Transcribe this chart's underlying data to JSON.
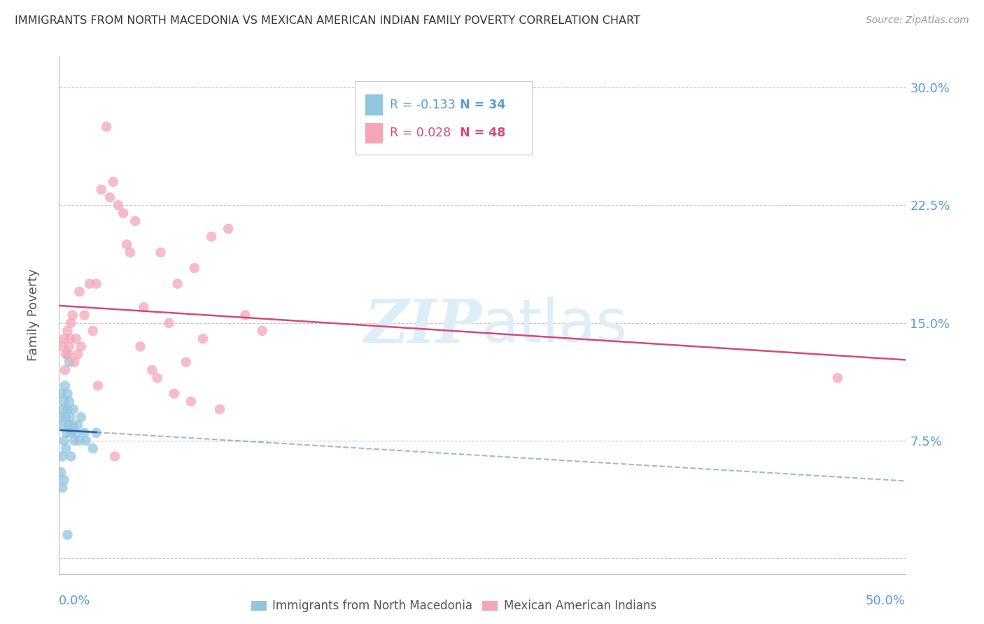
{
  "title": "IMMIGRANTS FROM NORTH MACEDONIA VS MEXICAN AMERICAN INDIAN FAMILY POVERTY CORRELATION CHART",
  "source": "Source: ZipAtlas.com",
  "ylabel": "Family Poverty",
  "ytick_values": [
    0.0,
    7.5,
    15.0,
    22.5,
    30.0
  ],
  "xlim": [
    0.0,
    50.0
  ],
  "ylim": [
    -1.0,
    32.0
  ],
  "ymin_display": 0.0,
  "ymax_display": 30.0,
  "color_blue": "#92c5de",
  "color_pink": "#f4a6b8",
  "color_blue_line": "#2166ac",
  "color_pink_line": "#d6497a",
  "color_blue_label": "#5b9bd5",
  "watermark_color": "#ddeef8",
  "background": "#ffffff",
  "grid_color": "#c8c8c8",
  "blue_scatter_x": [
    0.1,
    0.15,
    0.2,
    0.2,
    0.25,
    0.3,
    0.3,
    0.35,
    0.4,
    0.4,
    0.45,
    0.5,
    0.5,
    0.55,
    0.6,
    0.6,
    0.65,
    0.7,
    0.7,
    0.8,
    0.85,
    0.9,
    1.0,
    1.1,
    1.2,
    1.3,
    1.5,
    1.6,
    2.0,
    2.2,
    0.1,
    0.2,
    0.3,
    0.5
  ],
  "blue_scatter_y": [
    9.0,
    10.5,
    8.5,
    6.5,
    9.5,
    10.0,
    7.5,
    11.0,
    9.0,
    7.0,
    8.0,
    10.5,
    9.5,
    8.5,
    10.0,
    12.5,
    9.0,
    8.0,
    6.5,
    8.5,
    9.5,
    7.5,
    8.0,
    8.5,
    7.5,
    9.0,
    8.0,
    7.5,
    7.0,
    8.0,
    5.5,
    4.5,
    5.0,
    1.5
  ],
  "pink_scatter_x": [
    0.2,
    0.3,
    0.4,
    0.5,
    0.6,
    0.7,
    0.8,
    0.9,
    1.0,
    1.1,
    1.2,
    1.5,
    1.8,
    2.0,
    2.2,
    2.5,
    2.8,
    3.0,
    3.2,
    3.5,
    3.8,
    4.0,
    4.2,
    4.5,
    5.0,
    5.5,
    6.0,
    6.5,
    7.0,
    7.5,
    8.0,
    8.5,
    9.0,
    10.0,
    11.0,
    12.0,
    0.35,
    0.55,
    0.65,
    1.3,
    2.3,
    3.3,
    4.8,
    5.8,
    6.8,
    7.8,
    9.5,
    46.0
  ],
  "pink_scatter_y": [
    13.5,
    14.0,
    13.0,
    14.5,
    13.5,
    15.0,
    15.5,
    12.5,
    14.0,
    13.0,
    17.0,
    15.5,
    17.5,
    14.5,
    17.5,
    23.5,
    27.5,
    23.0,
    24.0,
    22.5,
    22.0,
    20.0,
    19.5,
    21.5,
    16.0,
    12.0,
    19.5,
    15.0,
    17.5,
    12.5,
    18.5,
    14.0,
    20.5,
    21.0,
    15.5,
    14.5,
    12.0,
    13.0,
    14.0,
    13.5,
    11.0,
    6.5,
    13.5,
    11.5,
    10.5,
    10.0,
    9.5,
    11.5
  ]
}
